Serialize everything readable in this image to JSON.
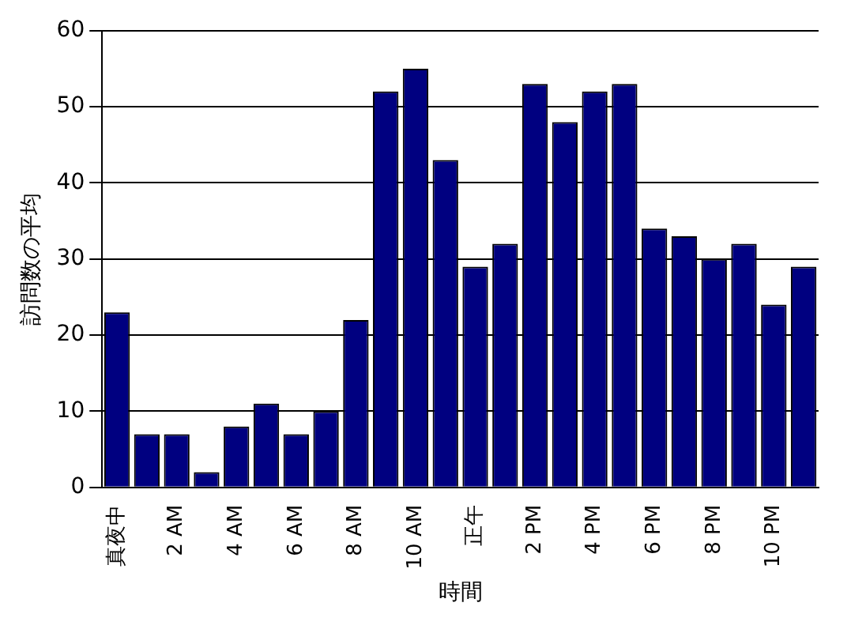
{
  "chart_data": {
    "type": "bar",
    "xlabel": "時間",
    "ylabel": "訪問数の平均",
    "categories": [
      "真夜中",
      null,
      "2 AM",
      null,
      "4 AM",
      null,
      "6 AM",
      null,
      "8 AM",
      null,
      "10 AM",
      null,
      "正午",
      null,
      "2 PM",
      null,
      "4 PM",
      null,
      "6 PM",
      null,
      "8 PM",
      null,
      "10 PM",
      null
    ],
    "values": [
      23,
      7,
      7,
      2,
      8,
      11,
      7,
      10,
      22,
      52,
      55,
      43,
      29,
      32,
      53,
      48,
      52,
      53,
      34,
      33,
      30,
      32,
      24,
      29
    ],
    "color": "#000080",
    "ylim": [
      0,
      60
    ],
    "yticks": [
      0,
      10,
      20,
      30,
      40,
      50,
      60
    ],
    "grid": "y"
  }
}
